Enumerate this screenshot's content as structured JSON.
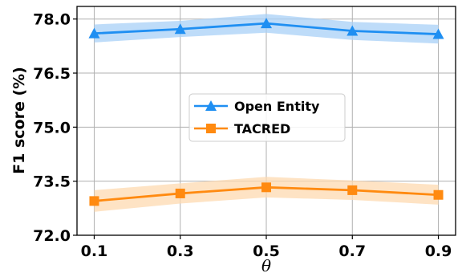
{
  "chart_data": {
    "type": "line",
    "x": [
      0.1,
      0.3,
      0.5,
      0.7,
      0.9
    ],
    "x_tick_labels": [
      "0.1",
      "0.3",
      "0.5",
      "0.7",
      "0.9"
    ],
    "y_ticks": [
      72.0,
      73.5,
      75.0,
      76.5,
      78.0
    ],
    "y_tick_labels": [
      "72.0",
      "73.5",
      "75.0",
      "76.5",
      "78.0"
    ],
    "xlim": [
      0.06,
      0.94
    ],
    "ylim": [
      72.0,
      78.35
    ],
    "xlabel": "θ",
    "ylabel": "F1 score (%)",
    "grid": true,
    "legend_position": "center",
    "series": [
      {
        "name": "Open Entity",
        "marker": "triangle",
        "color": "#1f8ff2",
        "band_color": "#a8d0f7",
        "values": [
          77.6,
          77.72,
          77.88,
          77.67,
          77.58
        ],
        "band_lower": [
          77.35,
          77.5,
          77.62,
          77.42,
          77.32
        ],
        "band_upper": [
          77.85,
          77.95,
          78.14,
          77.92,
          77.84
        ]
      },
      {
        "name": "TACRED",
        "marker": "square",
        "color": "#ff8a10",
        "band_color": "#fdd9b0",
        "values": [
          72.95,
          73.16,
          73.33,
          73.25,
          73.12
        ],
        "band_lower": [
          72.65,
          72.88,
          73.05,
          72.98,
          72.85
        ],
        "band_upper": [
          73.25,
          73.44,
          73.62,
          73.52,
          73.4
        ]
      }
    ]
  }
}
